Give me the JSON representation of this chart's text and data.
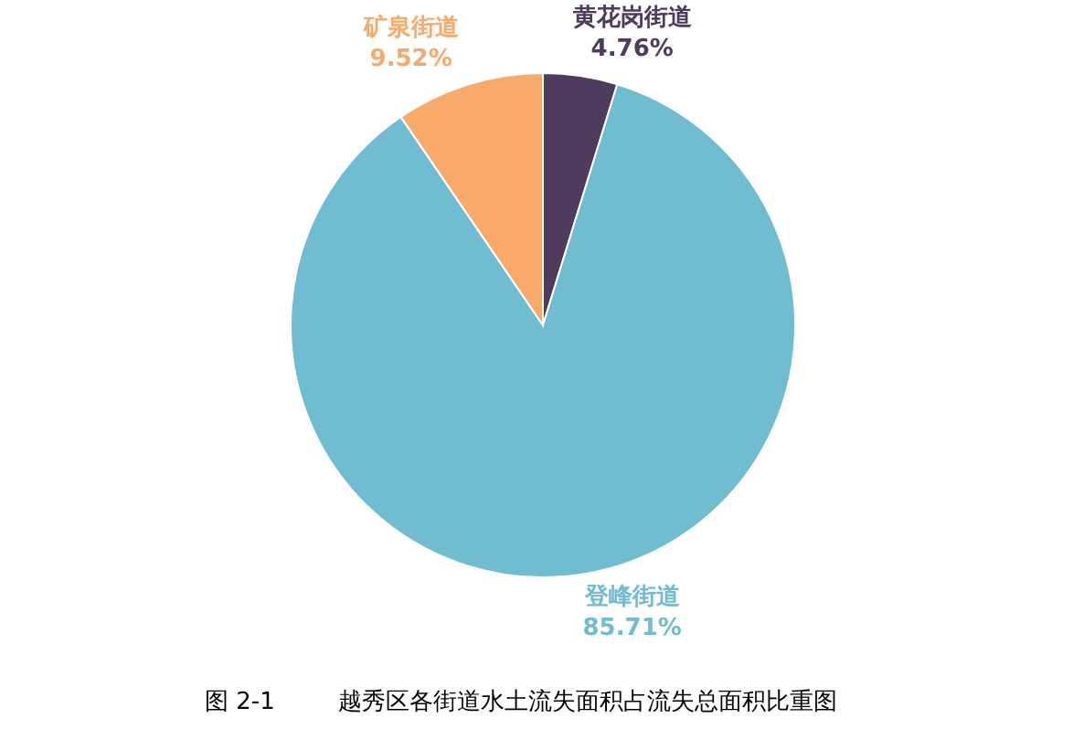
{
  "chart_data": {
    "type": "pie",
    "title": "越秀区各街道水土流失面积占流失总面积比重图",
    "annotations": [
      "图 2-1"
    ],
    "categories": [
      "黄花岗街道",
      "登峰街道",
      "矿泉街道"
    ],
    "values": [
      4.76,
      85.71,
      9.52
    ],
    "colors": [
      "#4f3b5d",
      "#70bcd1",
      "#f8aa6b"
    ],
    "value_labels": [
      "4.76%",
      "85.71%",
      "9.52%"
    ]
  }
}
